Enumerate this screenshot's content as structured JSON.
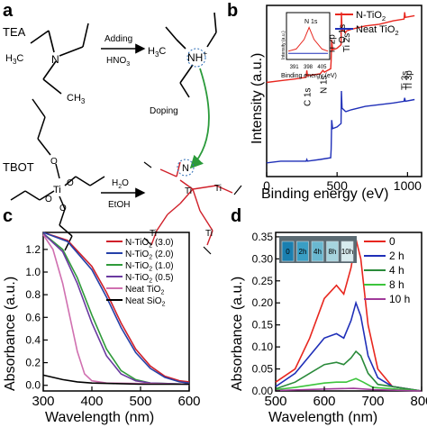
{
  "panels": {
    "a": {
      "letter": "a",
      "tea": "TEA",
      "tbot": "TBOT",
      "adding": "Adding",
      "hno3": "HNO",
      "hno3_sub": "3",
      "doping": "Doping",
      "h2o": "H",
      "h2o_sub": "2",
      "h2o_tail": "O",
      "etoh": "EtOH",
      "h3c": "H",
      "h3c_sub": "3",
      "h3c_tail": "C",
      "ch3": "CH",
      "ch3_sub": "3",
      "n": "N",
      "nh_plus": "NH",
      "ti": "Ti",
      "o": "O",
      "colors": {
        "red": "#e8271f",
        "green": "#2a9a3a",
        "blue": "#2a6cb6"
      }
    },
    "b": {
      "letter": "b"
    },
    "c": {
      "letter": "c"
    },
    "d": {
      "letter": "d"
    }
  },
  "chart_data": [
    {
      "panel": "b",
      "type": "line",
      "xlabel": "Binding energy (eV)",
      "ylabel": "Intensity (a.u.)",
      "xlim": [
        0,
        1100
      ],
      "xticks": [
        0,
        500,
        1000
      ],
      "yticks": "none",
      "legend_position": "top-right",
      "series": [
        {
          "name": "N-TiO",
          "name_sub": "2",
          "color": "#e8271f",
          "points": [
            [
              0,
              0.55
            ],
            [
              100,
              0.56
            ],
            [
              200,
              0.57
            ],
            [
              280,
              0.58
            ],
            [
              285,
              0.62
            ],
            [
              290,
              0.59
            ],
            [
              380,
              0.6
            ],
            [
              400,
              0.62
            ],
            [
              410,
              0.61
            ],
            [
              455,
              0.63
            ],
            [
              458,
              0.68
            ],
            [
              462,
              0.8
            ],
            [
              468,
              0.74
            ],
            [
              500,
              0.75
            ],
            [
              528,
              0.77
            ],
            [
              531,
              0.96
            ],
            [
              535,
              0.86
            ],
            [
              560,
              0.84
            ],
            [
              565,
              0.85
            ],
            [
              600,
              0.86
            ],
            [
              700,
              0.88
            ],
            [
              800,
              0.89
            ],
            [
              900,
              0.91
            ],
            [
              975,
              0.92
            ],
            [
              980,
              0.96
            ],
            [
              985,
              0.93
            ],
            [
              1050,
              0.94
            ]
          ]
        },
        {
          "name": "Neat TiO",
          "name_sub": "2",
          "color": "#1f2fb8",
          "points": [
            [
              0,
              0.08
            ],
            [
              100,
              0.09
            ],
            [
              200,
              0.09
            ],
            [
              280,
              0.09
            ],
            [
              285,
              0.1
            ],
            [
              290,
              0.09
            ],
            [
              380,
              0.1
            ],
            [
              455,
              0.11
            ],
            [
              458,
              0.16
            ],
            [
              462,
              0.33
            ],
            [
              468,
              0.28
            ],
            [
              500,
              0.29
            ],
            [
              528,
              0.31
            ],
            [
              531,
              0.5
            ],
            [
              535,
              0.4
            ],
            [
              560,
              0.38
            ],
            [
              565,
              0.38
            ],
            [
              600,
              0.39
            ],
            [
              700,
              0.41
            ],
            [
              800,
              0.42
            ],
            [
              900,
              0.43
            ],
            [
              975,
              0.44
            ],
            [
              980,
              0.46
            ],
            [
              985,
              0.44
            ],
            [
              1050,
              0.45
            ]
          ]
        }
      ],
      "annotations": [
        {
          "text": "C 1s",
          "x": 285
        },
        {
          "text": "N 1s",
          "x": 400
        },
        {
          "text": "Ti 2p",
          "x": 458
        },
        {
          "text": "O 1s",
          "x": 531
        },
        {
          "text": "Ti 2s",
          "x": 562
        },
        {
          "text": "Ti 3s",
          "x": 975
        },
        {
          "text": "Ti 3p",
          "x": 1005
        }
      ],
      "inset": {
        "title": "N 1s",
        "xlabel": "Binding energy (eV)",
        "ylabel": "Intensity (a.u.)",
        "xlim": [
          388,
          408
        ],
        "xticks": [
          391,
          398,
          405
        ],
        "series": [
          {
            "name": "N-TiO2",
            "color": "#e8271f",
            "points": [
              [
                388,
                0.15
              ],
              [
                392,
                0.2
              ],
              [
                396,
                0.42
              ],
              [
                398.5,
                0.7
              ],
              [
                401,
                0.42
              ],
              [
                405,
                0.2
              ],
              [
                408,
                0.15
              ]
            ]
          },
          {
            "name": "Neat TiO2",
            "color": "#1f2fb8",
            "points": [
              [
                388,
                0.1
              ],
              [
                398,
                0.1
              ],
              [
                408,
                0.1
              ]
            ]
          }
        ]
      }
    },
    {
      "panel": "c",
      "type": "line",
      "xlabel": "Wavelength (nm)",
      "ylabel": "Absorbance (a.u.)",
      "xlim": [
        300,
        600
      ],
      "ylim": [
        -0.05,
        1.35
      ],
      "xticks": [
        300,
        400,
        500,
        600
      ],
      "yticks": [
        0.0,
        0.2,
        0.4,
        0.6,
        0.8,
        1.0,
        1.2
      ],
      "legend_position": "top-right",
      "series": [
        {
          "name": "N-TiO",
          "name_sub": "2",
          "name_tail": " (3.0)",
          "color": "#d0202a",
          "points": [
            [
              300,
              1.35
            ],
            [
              350,
              1.28
            ],
            [
              400,
              1.05
            ],
            [
              430,
              0.82
            ],
            [
              460,
              0.55
            ],
            [
              490,
              0.32
            ],
            [
              520,
              0.17
            ],
            [
              550,
              0.08
            ],
            [
              580,
              0.04
            ],
            [
              600,
              0.03
            ]
          ]
        },
        {
          "name": "N-TiO",
          "name_sub": "2",
          "name_tail": " (2.0)",
          "color": "#2540a8",
          "points": [
            [
              300,
              1.35
            ],
            [
              350,
              1.27
            ],
            [
              400,
              1.02
            ],
            [
              430,
              0.78
            ],
            [
              460,
              0.51
            ],
            [
              490,
              0.29
            ],
            [
              520,
              0.15
            ],
            [
              550,
              0.07
            ],
            [
              580,
              0.03
            ],
            [
              600,
              0.02
            ]
          ]
        },
        {
          "name": "N-TiO",
          "name_sub": "2",
          "name_tail": " (1.0)",
          "color": "#2f9a3a",
          "points": [
            [
              300,
              1.34
            ],
            [
              340,
              1.2
            ],
            [
              370,
              0.95
            ],
            [
              400,
              0.62
            ],
            [
              430,
              0.32
            ],
            [
              460,
              0.13
            ],
            [
              490,
              0.05
            ],
            [
              520,
              0.02
            ],
            [
              600,
              0.01
            ]
          ]
        },
        {
          "name": "N-TiO",
          "name_sub": "2",
          "name_tail": " (0.5)",
          "color": "#6a3aa0",
          "points": [
            [
              300,
              1.34
            ],
            [
              340,
              1.18
            ],
            [
              370,
              0.9
            ],
            [
              400,
              0.55
            ],
            [
              430,
              0.26
            ],
            [
              460,
              0.1
            ],
            [
              490,
              0.04
            ],
            [
              520,
              0.02
            ],
            [
              600,
              0.01
            ]
          ]
        },
        {
          "name": "Neat TiO",
          "name_sub": "2",
          "name_tail": "",
          "color": "#d070b0",
          "points": [
            [
              300,
              1.33
            ],
            [
              320,
              1.2
            ],
            [
              340,
              0.9
            ],
            [
              355,
              0.6
            ],
            [
              370,
              0.3
            ],
            [
              385,
              0.1
            ],
            [
              400,
              0.04
            ],
            [
              430,
              0.02
            ],
            [
              600,
              0.01
            ]
          ]
        },
        {
          "name": "Neat SiO",
          "name_sub": "2",
          "name_tail": "",
          "color": "#000000",
          "points": [
            [
              300,
              0.09
            ],
            [
              320,
              0.07
            ],
            [
              340,
              0.05
            ],
            [
              370,
              0.03
            ],
            [
              400,
              0.02
            ],
            [
              450,
              0.015
            ],
            [
              500,
              0.01
            ],
            [
              600,
              0.01
            ]
          ]
        }
      ]
    },
    {
      "panel": "d",
      "type": "line",
      "xlabel": "Wavelength (nm)",
      "ylabel": "Absorbance (a.u.)",
      "xlim": [
        500,
        800
      ],
      "ylim": [
        0,
        0.36
      ],
      "xticks": [
        500,
        600,
        700,
        800
      ],
      "yticks": [
        0.0,
        0.05,
        0.1,
        0.15,
        0.2,
        0.25,
        0.3,
        0.35
      ],
      "legend_position": "top-right",
      "inset_labels": [
        "0",
        "2h",
        "4h",
        "8h",
        "10h"
      ],
      "series": [
        {
          "name": "0",
          "color": "#e8271f",
          "points": [
            [
              500,
              0.02
            ],
            [
              540,
              0.05
            ],
            [
              570,
              0.12
            ],
            [
              600,
              0.21
            ],
            [
              625,
              0.24
            ],
            [
              640,
              0.22
            ],
            [
              655,
              0.28
            ],
            [
              665,
              0.345
            ],
            [
              675,
              0.3
            ],
            [
              690,
              0.15
            ],
            [
              710,
              0.05
            ],
            [
              740,
              0.01
            ],
            [
              800,
              0.0
            ]
          ]
        },
        {
          "name": "2 h",
          "color": "#1f2fb8",
          "points": [
            [
              500,
              0.01
            ],
            [
              540,
              0.04
            ],
            [
              570,
              0.08
            ],
            [
              600,
              0.12
            ],
            [
              625,
              0.13
            ],
            [
              640,
              0.12
            ],
            [
              655,
              0.16
            ],
            [
              665,
              0.2
            ],
            [
              675,
              0.17
            ],
            [
              690,
              0.08
            ],
            [
              710,
              0.03
            ],
            [
              740,
              0.01
            ],
            [
              800,
              0.0
            ]
          ]
        },
        {
          "name": "4 h",
          "color": "#2a8a3a",
          "points": [
            [
              500,
              0.005
            ],
            [
              540,
              0.02
            ],
            [
              570,
              0.04
            ],
            [
              600,
              0.06
            ],
            [
              625,
              0.065
            ],
            [
              640,
              0.06
            ],
            [
              655,
              0.075
            ],
            [
              665,
              0.09
            ],
            [
              675,
              0.08
            ],
            [
              690,
              0.04
            ],
            [
              710,
              0.015
            ],
            [
              800,
              0.0
            ]
          ]
        },
        {
          "name": "8 h",
          "color": "#3cc43c",
          "points": [
            [
              500,
              0.003
            ],
            [
              540,
              0.008
            ],
            [
              600,
              0.018
            ],
            [
              625,
              0.02
            ],
            [
              645,
              0.02
            ],
            [
              665,
              0.028
            ],
            [
              680,
              0.02
            ],
            [
              700,
              0.008
            ],
            [
              800,
              0.0
            ]
          ]
        },
        {
          "name": "10 h",
          "color": "#a03a9a",
          "points": [
            [
              500,
              0.001
            ],
            [
              560,
              0.003
            ],
            [
              620,
              0.005
            ],
            [
              660,
              0.006
            ],
            [
              700,
              0.003
            ],
            [
              800,
              0.0
            ]
          ]
        }
      ]
    }
  ]
}
